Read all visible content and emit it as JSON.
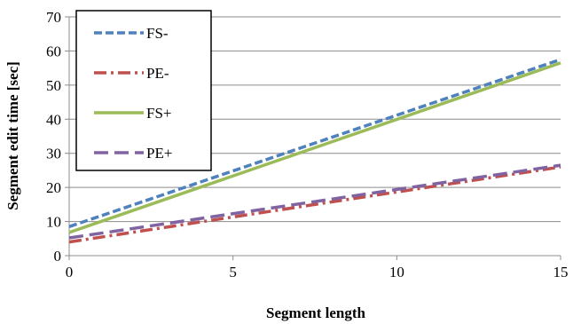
{
  "chart_data": {
    "type": "line",
    "title": "",
    "xlabel": "Segment length",
    "ylabel": "Segment edit time [sec]",
    "xlim": [
      0,
      15
    ],
    "ylim": [
      0,
      70
    ],
    "xticks": [
      0,
      5,
      10,
      15
    ],
    "yticks": [
      0,
      10,
      20,
      30,
      40,
      50,
      60,
      70
    ],
    "grid": "horizontal",
    "legend_position": "top-left",
    "series": [
      {
        "name": "FS-",
        "x": [
          0,
          15
        ],
        "values": [
          8.5,
          57.5
        ],
        "color": "#4f81bd",
        "dash": "short-dash"
      },
      {
        "name": "PE-",
        "x": [
          0,
          15
        ],
        "values": [
          4.0,
          26.0
        ],
        "color": "#c0504d",
        "dash": "dash-dot"
      },
      {
        "name": "FS+",
        "x": [
          0,
          15
        ],
        "values": [
          6.8,
          56.5
        ],
        "color": "#9bbb59",
        "dash": "solid"
      },
      {
        "name": "PE+",
        "x": [
          0,
          15
        ],
        "values": [
          5.2,
          26.5
        ],
        "color": "#8064a2",
        "dash": "long-dash"
      }
    ]
  }
}
